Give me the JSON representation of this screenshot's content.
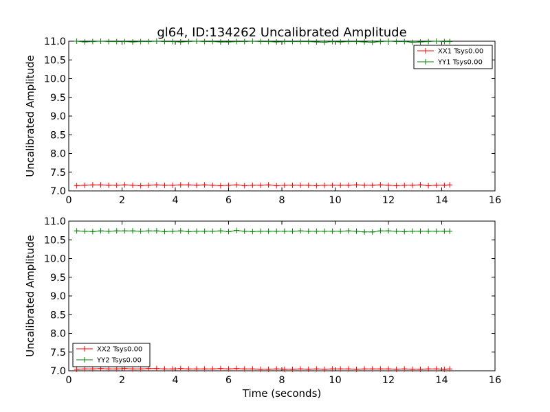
{
  "figure": {
    "title": "gl64, ID:134262 Uncalibrated Amplitude",
    "xlabel": "Time (seconds)"
  },
  "colors": {
    "red": "#ff0000",
    "green": "#008000"
  },
  "chart_data": [
    {
      "type": "line",
      "title": "gl64, ID:134262 Uncalibrated Amplitude",
      "xlabel": "",
      "ylabel": "Uncalibrated Amplitude",
      "xlim": [
        0,
        16
      ],
      "ylim": [
        7.0,
        11.0
      ],
      "xticks": [
        "0",
        "2",
        "4",
        "6",
        "8",
        "10",
        "12",
        "14",
        "16"
      ],
      "yticks": [
        "7.0",
        "7.5",
        "8.0",
        "8.5",
        "9.0",
        "9.5",
        "10.0",
        "10.5",
        "11.0"
      ],
      "grid": false,
      "legend": "top-right",
      "x": [
        0.3,
        0.6,
        0.9,
        1.2,
        1.5,
        1.8,
        2.1,
        2.4,
        2.7,
        3.0,
        3.3,
        3.6,
        3.9,
        4.2,
        4.5,
        4.8,
        5.1,
        5.4,
        5.7,
        6.0,
        6.3,
        6.6,
        6.9,
        7.2,
        7.5,
        7.8,
        8.1,
        8.4,
        8.7,
        9.0,
        9.3,
        9.6,
        9.9,
        10.2,
        10.5,
        10.8,
        11.1,
        11.4,
        11.7,
        12.0,
        12.3,
        12.6,
        12.9,
        13.2,
        13.5,
        13.8,
        14.1,
        14.3
      ],
      "series": [
        {
          "name": "XX1 Tsys0.00",
          "color": "#ff0000",
          "values": [
            7.14,
            7.15,
            7.16,
            7.16,
            7.15,
            7.15,
            7.16,
            7.15,
            7.14,
            7.15,
            7.16,
            7.15,
            7.15,
            7.16,
            7.16,
            7.15,
            7.16,
            7.15,
            7.14,
            7.15,
            7.16,
            7.14,
            7.15,
            7.15,
            7.16,
            7.14,
            7.15,
            7.15,
            7.15,
            7.15,
            7.14,
            7.15,
            7.15,
            7.15,
            7.15,
            7.16,
            7.15,
            7.15,
            7.16,
            7.15,
            7.14,
            7.15,
            7.15,
            7.16,
            7.14,
            7.15,
            7.15,
            7.16
          ]
        },
        {
          "name": "YY1 Tsys0.00",
          "color": "#008000",
          "values": [
            11.0,
            10.98,
            10.99,
            11.0,
            10.99,
            10.99,
            10.99,
            10.98,
            10.99,
            10.99,
            11.0,
            10.99,
            10.99,
            10.98,
            10.99,
            11.0,
            10.99,
            10.99,
            10.98,
            10.98,
            10.99,
            10.99,
            11.0,
            10.99,
            10.99,
            10.98,
            10.99,
            10.99,
            10.99,
            10.99,
            10.98,
            10.97,
            10.99,
            10.98,
            10.99,
            10.99,
            10.98,
            10.97,
            10.99,
            11.0,
            10.99,
            10.99,
            10.97,
            10.98,
            10.99,
            11.0,
            10.99,
            10.99
          ]
        }
      ]
    },
    {
      "type": "line",
      "title": "",
      "xlabel": "Time (seconds)",
      "ylabel": "Uncalibrated Amplitude",
      "xlim": [
        0,
        16
      ],
      "ylim": [
        7.0,
        11.0
      ],
      "xticks": [
        "0",
        "2",
        "4",
        "6",
        "8",
        "10",
        "12",
        "14",
        "16"
      ],
      "yticks": [
        "7.0",
        "7.5",
        "8.0",
        "8.5",
        "9.0",
        "9.5",
        "10.0",
        "10.5",
        "11.0"
      ],
      "grid": false,
      "legend": "bottom-left",
      "x": [
        0.3,
        0.6,
        0.9,
        1.2,
        1.5,
        1.8,
        2.1,
        2.4,
        2.7,
        3.0,
        3.3,
        3.6,
        3.9,
        4.2,
        4.5,
        4.8,
        5.1,
        5.4,
        5.7,
        6.0,
        6.3,
        6.6,
        6.9,
        7.2,
        7.5,
        7.8,
        8.1,
        8.4,
        8.7,
        9.0,
        9.3,
        9.6,
        9.9,
        10.2,
        10.5,
        10.8,
        11.1,
        11.4,
        11.7,
        12.0,
        12.3,
        12.6,
        12.9,
        13.2,
        13.5,
        13.8,
        14.1,
        14.3
      ],
      "series": [
        {
          "name": "XX2 Tsys0.00",
          "color": "#ff0000",
          "values": [
            7.04,
            7.05,
            7.05,
            7.06,
            7.05,
            7.05,
            7.06,
            7.05,
            7.05,
            7.06,
            7.06,
            7.05,
            7.05,
            7.06,
            7.05,
            7.05,
            7.05,
            7.05,
            7.06,
            7.05,
            7.06,
            7.05,
            7.05,
            7.04,
            7.04,
            7.05,
            7.04,
            7.04,
            7.05,
            7.04,
            7.05,
            7.04,
            7.05,
            7.05,
            7.05,
            7.04,
            7.05,
            7.05,
            7.05,
            7.05,
            7.04,
            7.05,
            7.04,
            7.04,
            7.05,
            7.05,
            7.04,
            7.05
          ]
        },
        {
          "name": "YY2 Tsys0.00",
          "color": "#008000",
          "values": [
            10.74,
            10.73,
            10.72,
            10.74,
            10.73,
            10.74,
            10.74,
            10.74,
            10.73,
            10.74,
            10.74,
            10.72,
            10.73,
            10.74,
            10.72,
            10.73,
            10.73,
            10.73,
            10.74,
            10.72,
            10.75,
            10.73,
            10.72,
            10.73,
            10.73,
            10.73,
            10.73,
            10.73,
            10.74,
            10.73,
            10.73,
            10.73,
            10.73,
            10.73,
            10.74,
            10.73,
            10.71,
            10.71,
            10.74,
            10.74,
            10.73,
            10.72,
            10.73,
            10.73,
            10.73,
            10.73,
            10.73,
            10.73
          ]
        }
      ]
    }
  ]
}
